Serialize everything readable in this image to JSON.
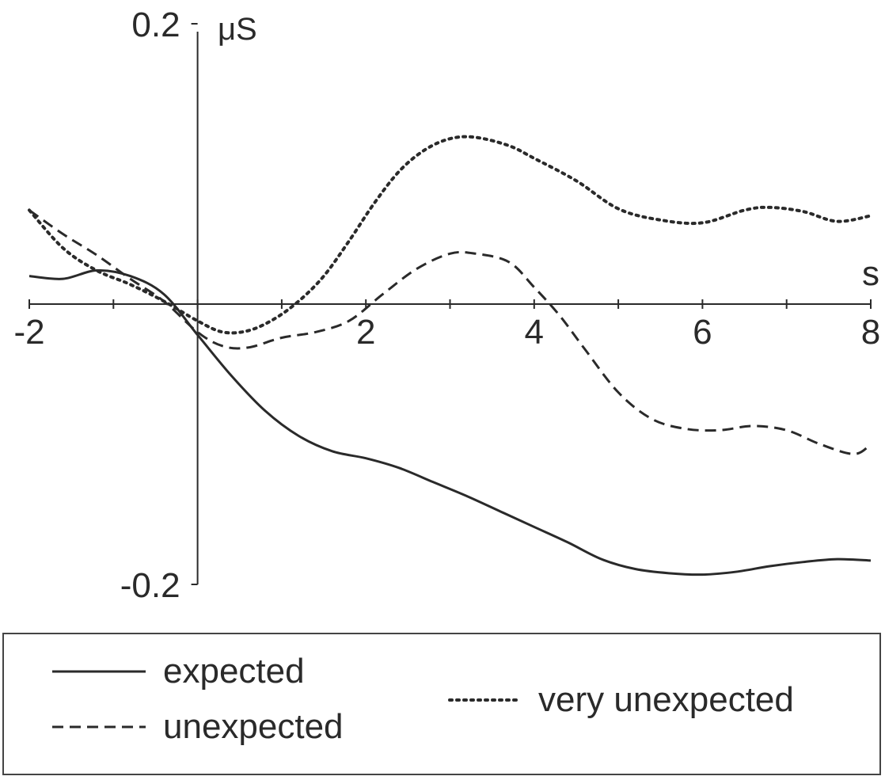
{
  "chart_data": {
    "type": "line",
    "xlabel": "s",
    "ylabel": "μS",
    "xlim": [
      -2,
      8
    ],
    "ylim": [
      -0.2,
      0.2
    ],
    "x_ticks": [
      {
        "value": -2,
        "label": "-2"
      },
      {
        "value": 2,
        "label": "2"
      },
      {
        "value": 4,
        "label": "4"
      },
      {
        "value": 6,
        "label": "6"
      },
      {
        "value": 8,
        "label": "8"
      }
    ],
    "y_ticks": [
      {
        "value": 0.2,
        "label": "0.2"
      },
      {
        "value": -0.2,
        "label": "-0.2"
      }
    ],
    "grid": false,
    "legend_position": "bottom",
    "series": [
      {
        "name": "expected",
        "style": "solid",
        "x": [
          -2,
          -1.6,
          -1.2,
          -0.8,
          -0.4,
          0,
          0.4,
          0.8,
          1.2,
          1.6,
          2,
          2.4,
          2.8,
          3.2,
          3.6,
          4,
          4.4,
          4.8,
          5.2,
          5.6,
          6,
          6.4,
          6.8,
          7.2,
          7.6,
          8
        ],
        "y": [
          0.02,
          0.018,
          0.024,
          0.02,
          0.007,
          -0.022,
          -0.051,
          -0.076,
          -0.094,
          -0.105,
          -0.11,
          -0.117,
          -0.127,
          -0.137,
          -0.148,
          -0.159,
          -0.17,
          -0.182,
          -0.189,
          -0.192,
          -0.193,
          -0.191,
          -0.187,
          -0.184,
          -0.182,
          -0.183
        ]
      },
      {
        "name": "unexpected",
        "style": "dashed",
        "x": [
          -2,
          -1.6,
          -1.2,
          -0.8,
          -0.4,
          0,
          0.3,
          0.6,
          1,
          1.4,
          1.8,
          2.2,
          2.6,
          3,
          3.3,
          3.7,
          4,
          4.3,
          4.6,
          5,
          5.4,
          5.8,
          6.2,
          6.6,
          7,
          7.4,
          7.8,
          8
        ],
        "y": [
          0.067,
          0.05,
          0.035,
          0.018,
          0.002,
          -0.02,
          -0.03,
          -0.031,
          -0.024,
          -0.02,
          -0.012,
          0.007,
          0.025,
          0.036,
          0.036,
          0.03,
          0.012,
          -0.008,
          -0.032,
          -0.063,
          -0.082,
          -0.089,
          -0.09,
          -0.087,
          -0.09,
          -0.1,
          -0.107,
          -0.1
        ]
      },
      {
        "name": "very unexpected",
        "style": "dotted",
        "x": [
          -2,
          -1.6,
          -1.2,
          -0.8,
          -0.4,
          0,
          0.3,
          0.6,
          0.9,
          1.2,
          1.5,
          1.8,
          2.1,
          2.4,
          2.7,
          3,
          3.3,
          3.7,
          4,
          4.5,
          5,
          5.5,
          6,
          6.5,
          6.8,
          7.2,
          7.6,
          8
        ],
        "y": [
          0.067,
          0.04,
          0.024,
          0.014,
          0.002,
          -0.012,
          -0.02,
          -0.019,
          -0.011,
          0.002,
          0.02,
          0.045,
          0.072,
          0.095,
          0.11,
          0.118,
          0.119,
          0.113,
          0.104,
          0.088,
          0.068,
          0.06,
          0.058,
          0.067,
          0.069,
          0.066,
          0.059,
          0.063
        ]
      }
    ]
  }
}
